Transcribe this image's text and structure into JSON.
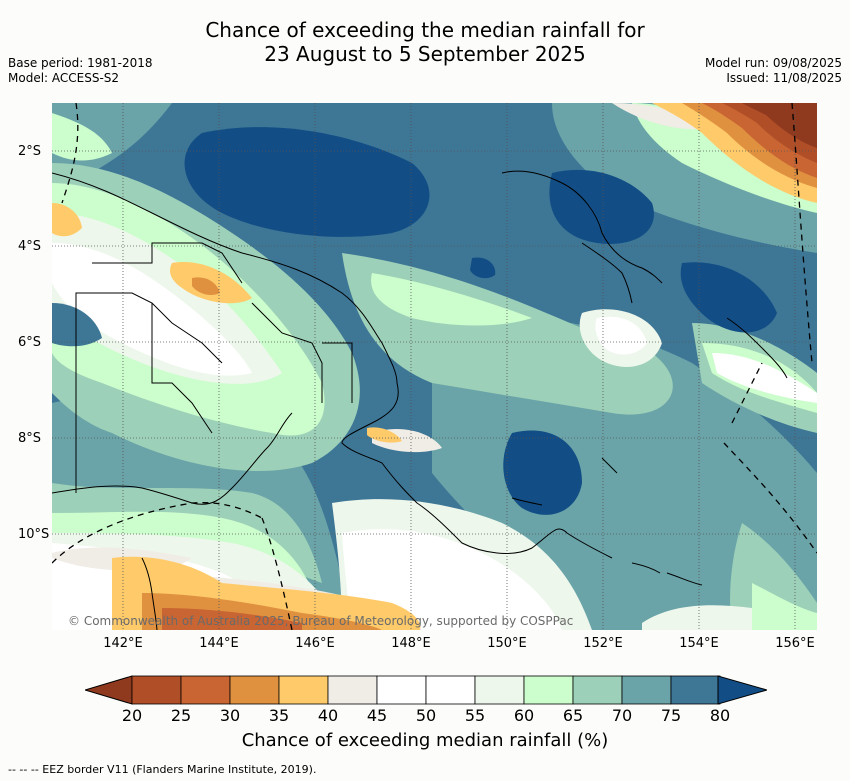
{
  "title_line1": "Chance of exceeding the median rainfall for",
  "title_line2": "23 August to 5 September 2025",
  "base_period": "Base period: 1981-2018",
  "model": "Model: ACCESS-S2",
  "model_run": "Model run: 09/08/2025",
  "issued": "Issued: 11/08/2025",
  "lat_labels": [
    "2°S",
    "4°S",
    "6°S",
    "8°S",
    "10°S"
  ],
  "lon_labels": [
    "142°E",
    "144°E",
    "146°E",
    "148°E",
    "150°E",
    "152°E",
    "154°E",
    "156°E"
  ],
  "copyright": "© Commonwealth of Australia 2025, Bureau of Meteorology, supported by COSPPac",
  "colorbar": {
    "ticks": [
      "20",
      "25",
      "30",
      "35",
      "40",
      "45",
      "50",
      "55",
      "60",
      "65",
      "70",
      "75",
      "80"
    ],
    "colors": [
      "#8f3a1f",
      "#b04e27",
      "#c96532",
      "#e0913f",
      "#ffcb6a",
      "#f0ece6",
      "#ffffff",
      "#ffffff",
      "#eef7ec",
      "#ccfdcc",
      "#9dd0b8",
      "#6aa4a8",
      "#3e7696",
      "#124e85"
    ],
    "label": "Chance of exceeding median rainfall (%)"
  },
  "footer": "--  --  -- EEZ border V11 (Flanders Marine Institute, 2019)."
}
